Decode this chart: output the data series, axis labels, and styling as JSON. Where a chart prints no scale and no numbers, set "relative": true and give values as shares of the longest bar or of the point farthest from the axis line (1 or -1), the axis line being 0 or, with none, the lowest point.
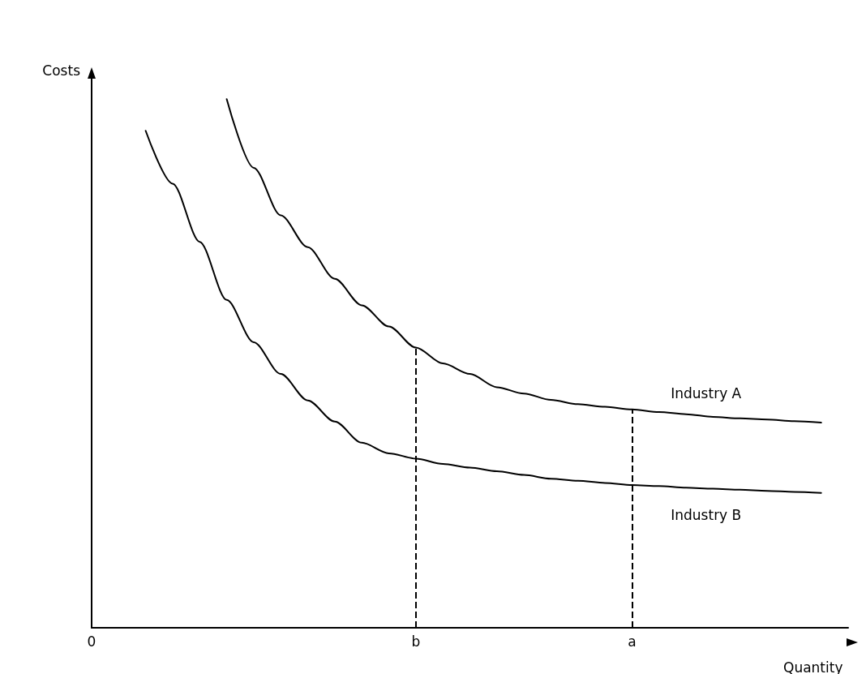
{
  "chart_data": {
    "type": "line",
    "relative": true,
    "xlabel": "Quantity",
    "ylabel": "Costs",
    "categories": [
      "0",
      null,
      null,
      null,
      null,
      null,
      null,
      null,
      null,
      null,
      null,
      null,
      "b",
      null,
      null,
      null,
      null,
      null,
      null,
      null,
      "a",
      null,
      null,
      null,
      null,
      null,
      null,
      null,
      null
    ],
    "grid": false,
    "legend": false,
    "marker": "none",
    "line_style": "solid",
    "series": [
      {
        "name": "Industry A",
        "color": "#000000",
        "values": [
          null,
          null,
          null,
          null,
          null,
          1,
          0.87,
          0.78,
          0.72,
          0.66,
          0.61,
          0.57,
          0.53,
          0.5,
          0.48,
          0.455,
          0.443,
          0.431,
          0.423,
          0.418,
          0.413,
          0.408,
          0.404,
          0.399,
          0.396,
          0.394,
          0.391,
          0.388,
          null
        ]
      },
      {
        "name": "Industry B",
        "color": "#000000",
        "values": [
          null,
          null,
          0.94,
          0.84,
          0.73,
          0.62,
          0.54,
          0.48,
          0.43,
          0.39,
          0.35,
          0.33,
          0.32,
          0.31,
          0.303,
          0.296,
          0.289,
          0.282,
          0.278,
          0.274,
          0.27,
          0.268,
          0.265,
          0.263,
          0.261,
          0.259,
          0.257,
          0.255,
          null
        ]
      }
    ],
    "ref_lines": [
      {
        "axis": "x",
        "value": "b",
        "line_style": "dashed",
        "color": "#000000"
      },
      {
        "axis": "x",
        "value": "a",
        "line_style": "dashed",
        "color": "#000000"
      }
    ]
  }
}
